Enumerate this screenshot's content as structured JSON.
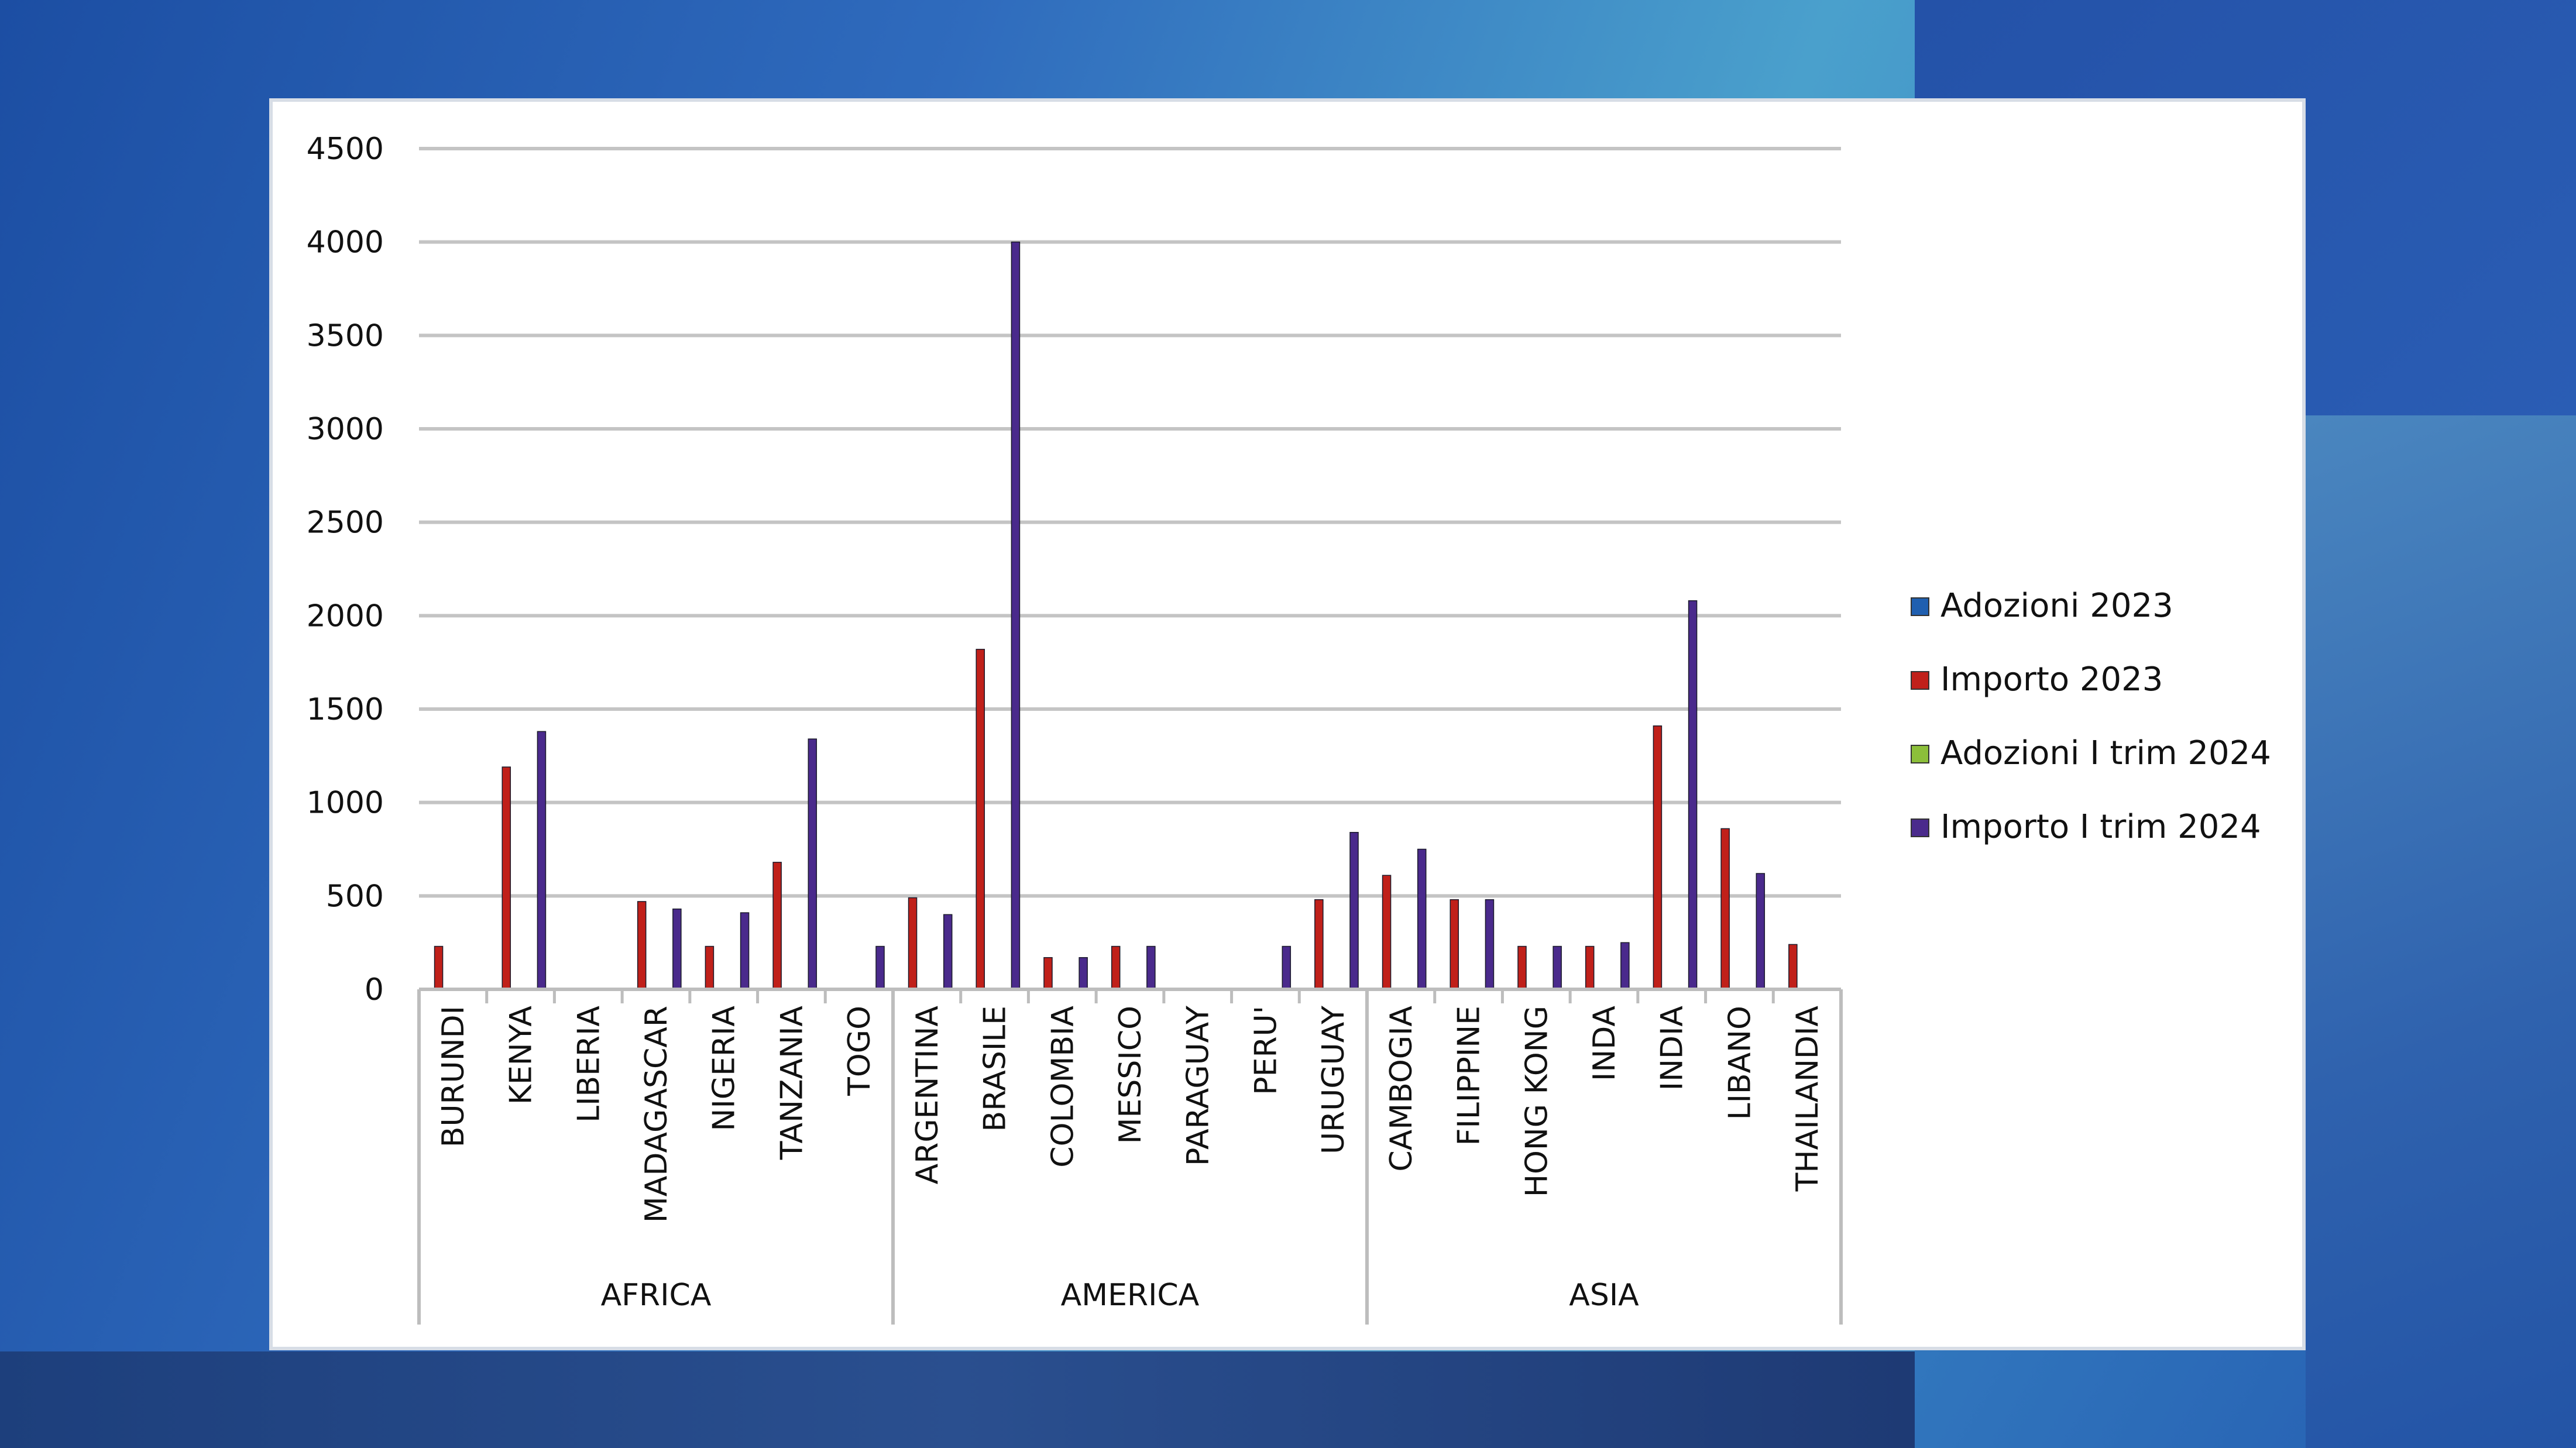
{
  "chart_data": {
    "type": "bar",
    "categories": [
      "BURUNDI",
      "KENYA",
      "LIBERIA",
      "MADAGASCAR",
      "NIGERIA",
      "TANZANIA",
      "TOGO",
      "ARGENTINA",
      "BRASILE",
      "COLOMBIA",
      "MESSICO",
      "PARAGUAY",
      "PERU'",
      "URUGUAY",
      "CAMBOGIA",
      "FILIPPINE",
      "HONG KONG",
      "INDA",
      "INDIA",
      "LIBANO",
      "THAILANDIA"
    ],
    "groups": [
      {
        "label": "AFRICA",
        "count": 7
      },
      {
        "label": "AMERICA",
        "count": 7
      },
      {
        "label": "ASIA",
        "count": 7
      }
    ],
    "series": [
      {
        "name": "Adozioni 2023",
        "color": "#1f5fb0",
        "values": [
          0,
          0,
          0,
          0,
          0,
          0,
          0,
          0,
          0,
          0,
          0,
          0,
          0,
          0,
          0,
          0,
          0,
          0,
          0,
          0,
          0
        ]
      },
      {
        "name": "Importo 2023",
        "color": "#c0201a",
        "values": [
          230,
          1190,
          0,
          470,
          230,
          680,
          0,
          490,
          1820,
          170,
          230,
          0,
          0,
          480,
          610,
          480,
          230,
          230,
          1410,
          860,
          240
        ]
      },
      {
        "name": "Adozioni I trim 2024",
        "color": "#8cbf3a",
        "values": [
          0,
          0,
          0,
          0,
          0,
          0,
          0,
          0,
          0,
          0,
          0,
          0,
          0,
          0,
          0,
          0,
          0,
          0,
          0,
          0,
          0
        ]
      },
      {
        "name": "Importo I trim 2024",
        "color": "#4a2a8c",
        "values": [
          0,
          1380,
          0,
          430,
          410,
          1340,
          230,
          400,
          4000,
          170,
          230,
          0,
          230,
          840,
          750,
          480,
          230,
          250,
          2080,
          620,
          0
        ]
      }
    ],
    "yticks": [
      "0",
      "500",
      "1000",
      "1500",
      "2000",
      "2500",
      "3000",
      "3500",
      "4000",
      "4500"
    ],
    "ylim": [
      0,
      4500
    ],
    "grid": true,
    "legend_position": "right"
  }
}
